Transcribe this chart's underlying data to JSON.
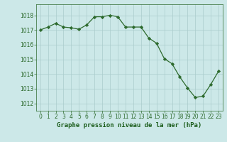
{
  "x": [
    0,
    1,
    2,
    3,
    4,
    5,
    6,
    7,
    8,
    9,
    10,
    11,
    12,
    13,
    14,
    15,
    16,
    17,
    18,
    19,
    20,
    21,
    22,
    23
  ],
  "y": [
    1017.0,
    1017.2,
    1017.45,
    1017.2,
    1017.15,
    1017.05,
    1017.35,
    1017.9,
    1017.9,
    1018.0,
    1017.9,
    1017.2,
    1017.2,
    1017.2,
    1016.45,
    1016.1,
    1015.05,
    1014.7,
    1013.8,
    1013.05,
    1012.4,
    1012.5,
    1013.3,
    1014.2
  ],
  "line_color": "#2d6a2d",
  "marker": "D",
  "marker_size": 2.2,
  "bg_color": "#cce8e8",
  "grid_color": "#aacccc",
  "xlabel": "Graphe pression niveau de la mer (hPa)",
  "xlabel_color": "#1a5c1a",
  "tick_color": "#2d6a2d",
  "ylim": [
    1011.5,
    1018.75
  ],
  "yticks": [
    1012,
    1013,
    1014,
    1015,
    1016,
    1017,
    1018
  ],
  "xticks": [
    0,
    1,
    2,
    3,
    4,
    5,
    6,
    7,
    8,
    9,
    10,
    11,
    12,
    13,
    14,
    15,
    16,
    17,
    18,
    19,
    20,
    21,
    22,
    23
  ],
  "tick_fontsize": 5.5,
  "xlabel_fontsize": 6.5,
  "linewidth": 0.9
}
